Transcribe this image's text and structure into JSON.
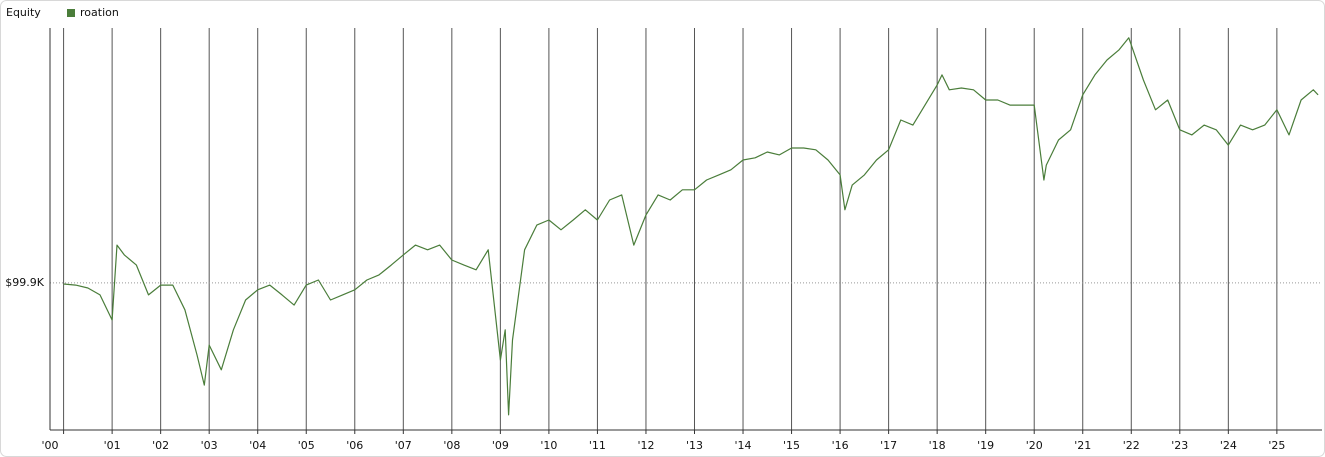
{
  "chart_data": {
    "type": "line",
    "title": "Equity",
    "x": [
      2000.0,
      2000.25,
      2000.5,
      2000.75,
      2001.0,
      2001.1,
      2001.25,
      2001.5,
      2001.75,
      2002.0,
      2002.25,
      2002.5,
      2002.75,
      2002.9,
      2003.0,
      2003.25,
      2003.5,
      2003.75,
      2004.0,
      2004.25,
      2004.5,
      2004.75,
      2005.0,
      2005.25,
      2005.5,
      2005.75,
      2006.0,
      2006.25,
      2006.5,
      2006.75,
      2007.0,
      2007.25,
      2007.5,
      2007.75,
      2008.0,
      2008.25,
      2008.5,
      2008.75,
      2009.0,
      2009.1,
      2009.17,
      2009.25,
      2009.5,
      2009.75,
      2010.0,
      2010.25,
      2010.5,
      2010.75,
      2011.0,
      2011.25,
      2011.5,
      2011.75,
      2012.0,
      2012.25,
      2012.5,
      2012.75,
      2013.0,
      2013.25,
      2013.5,
      2013.75,
      2014.0,
      2014.25,
      2014.5,
      2014.75,
      2015.0,
      2015.25,
      2015.5,
      2015.75,
      2016.0,
      2016.1,
      2016.25,
      2016.5,
      2016.75,
      2017.0,
      2017.25,
      2017.5,
      2017.75,
      2018.0,
      2018.1,
      2018.25,
      2018.5,
      2018.75,
      2019.0,
      2019.25,
      2019.5,
      2019.75,
      2020.0,
      2020.2,
      2020.25,
      2020.5,
      2020.75,
      2021.0,
      2021.25,
      2021.5,
      2021.75,
      2021.95,
      2022.0,
      2022.25,
      2022.5,
      2022.75,
      2023.0,
      2023.25,
      2023.5,
      2023.75,
      2024.0,
      2024.25,
      2024.5,
      2024.75,
      2025.0,
      2025.25,
      2025.5,
      2025.75,
      2025.85
    ],
    "series": [
      {
        "name": "roation",
        "color": "#4a7d3a",
        "values": [
          99600,
          99300,
          98500,
          96600,
          89700,
          110300,
          107600,
          104800,
          96600,
          99300,
          99300,
          92500,
          80100,
          71800,
          82800,
          76000,
          87000,
          95200,
          98000,
          99300,
          96600,
          93800,
          99300,
          100700,
          95200,
          96600,
          98000,
          100700,
          102100,
          104800,
          107600,
          110300,
          109000,
          110300,
          106200,
          104800,
          103500,
          109000,
          78700,
          87000,
          63600,
          84200,
          109000,
          115800,
          117200,
          114500,
          117200,
          120000,
          117200,
          122700,
          124100,
          110300,
          118600,
          124100,
          122700,
          125500,
          125500,
          128200,
          129600,
          131000,
          133700,
          134300,
          135900,
          135100,
          137000,
          137000,
          136500,
          133700,
          129600,
          120000,
          126800,
          129600,
          133700,
          136500,
          144700,
          143300,
          148800,
          154300,
          157100,
          153000,
          153500,
          153000,
          150200,
          150200,
          148800,
          148800,
          148800,
          128200,
          132300,
          139200,
          142000,
          151600,
          157100,
          161200,
          164000,
          167300,
          165300,
          155700,
          147500,
          150200,
          142000,
          140600,
          143300,
          142000,
          137800,
          143300,
          142000,
          143300,
          147500,
          140600,
          150200,
          153000,
          151600
        ]
      }
    ],
    "xlim": [
      1999.72,
      2025.93
    ],
    "xticks": [
      {
        "value": 2000,
        "label": "'00"
      },
      {
        "value": 2001,
        "label": "'01"
      },
      {
        "value": 2002,
        "label": "'02"
      },
      {
        "value": 2003,
        "label": "'03"
      },
      {
        "value": 2004,
        "label": "'04"
      },
      {
        "value": 2005,
        "label": "'05"
      },
      {
        "value": 2006,
        "label": "'06"
      },
      {
        "value": 2007,
        "label": "'07"
      },
      {
        "value": 2008,
        "label": "'08"
      },
      {
        "value": 2009,
        "label": "'09"
      },
      {
        "value": 2010,
        "label": "'10"
      },
      {
        "value": 2011,
        "label": "'11"
      },
      {
        "value": 2012,
        "label": "'12"
      },
      {
        "value": 2013,
        "label": "'13"
      },
      {
        "value": 2014,
        "label": "'14"
      },
      {
        "value": 2015,
        "label": "'15"
      },
      {
        "value": 2016,
        "label": "'16"
      },
      {
        "value": 2017,
        "label": "'17"
      },
      {
        "value": 2018,
        "label": "'18"
      },
      {
        "value": 2019,
        "label": "'19"
      },
      {
        "value": 2020,
        "label": "'20"
      },
      {
        "value": 2021,
        "label": "'21"
      },
      {
        "value": 2022,
        "label": "'22"
      },
      {
        "value": 2023,
        "label": "'23"
      },
      {
        "value": 2024,
        "label": "'24"
      },
      {
        "value": 2025,
        "label": "'25"
      }
    ],
    "ylim": [
      60000,
      170000
    ],
    "yticks": [
      {
        "value": 99900,
        "label": "$99.9K"
      }
    ],
    "grid": true
  }
}
